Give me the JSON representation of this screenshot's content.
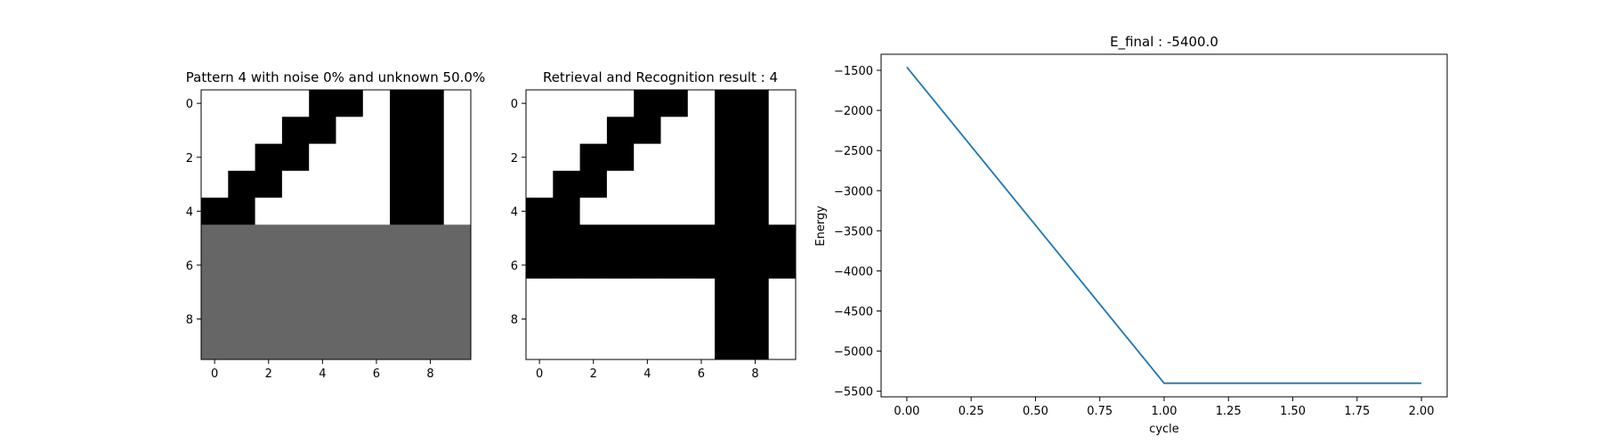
{
  "chart_data": [
    {
      "type": "heatmap",
      "title": "Pattern 4 with noise 0% and unknown 50.0%",
      "xlabel": "",
      "ylabel": "",
      "x_ticks": [
        0,
        2,
        4,
        6,
        8
      ],
      "y_ticks": [
        0,
        2,
        4,
        6,
        8
      ],
      "colormap": "gray (1 = black, 0 = unknown gray, -1 = white)",
      "colors": {
        "1": "#000000",
        "0": "#666666",
        "-1": "#ffffff"
      },
      "grid": [
        [
          -1,
          -1,
          -1,
          -1,
          1,
          1,
          -1,
          1,
          1,
          -1
        ],
        [
          -1,
          -1,
          -1,
          1,
          1,
          -1,
          -1,
          1,
          1,
          -1
        ],
        [
          -1,
          -1,
          1,
          1,
          -1,
          -1,
          -1,
          1,
          1,
          -1
        ],
        [
          -1,
          1,
          1,
          -1,
          -1,
          -1,
          -1,
          1,
          1,
          -1
        ],
        [
          1,
          1,
          -1,
          -1,
          -1,
          -1,
          -1,
          1,
          1,
          -1
        ],
        [
          0,
          0,
          0,
          0,
          0,
          0,
          0,
          0,
          0,
          0
        ],
        [
          0,
          0,
          0,
          0,
          0,
          0,
          0,
          0,
          0,
          0
        ],
        [
          0,
          0,
          0,
          0,
          0,
          0,
          0,
          0,
          0,
          0
        ],
        [
          0,
          0,
          0,
          0,
          0,
          0,
          0,
          0,
          0,
          0
        ],
        [
          0,
          0,
          0,
          0,
          0,
          0,
          0,
          0,
          0,
          0
        ]
      ]
    },
    {
      "type": "heatmap",
      "title": "Retrieval and Recognition result : 4",
      "xlabel": "",
      "ylabel": "",
      "x_ticks": [
        0,
        2,
        4,
        6,
        8
      ],
      "y_ticks": [
        0,
        2,
        4,
        6,
        8
      ],
      "colormap": "gray (1 = black, -1 = white)",
      "colors": {
        "1": "#000000",
        "0": "#666666",
        "-1": "#ffffff"
      },
      "grid": [
        [
          -1,
          -1,
          -1,
          -1,
          1,
          1,
          -1,
          1,
          1,
          -1
        ],
        [
          -1,
          -1,
          -1,
          1,
          1,
          -1,
          -1,
          1,
          1,
          -1
        ],
        [
          -1,
          -1,
          1,
          1,
          -1,
          -1,
          -1,
          1,
          1,
          -1
        ],
        [
          -1,
          1,
          1,
          -1,
          -1,
          -1,
          -1,
          1,
          1,
          -1
        ],
        [
          1,
          1,
          -1,
          -1,
          -1,
          -1,
          -1,
          1,
          1,
          -1
        ],
        [
          1,
          1,
          1,
          1,
          1,
          1,
          1,
          1,
          1,
          1
        ],
        [
          1,
          1,
          1,
          1,
          1,
          1,
          1,
          1,
          1,
          1
        ],
        [
          -1,
          -1,
          -1,
          -1,
          -1,
          -1,
          -1,
          1,
          1,
          -1
        ],
        [
          -1,
          -1,
          -1,
          -1,
          -1,
          -1,
          -1,
          1,
          1,
          -1
        ],
        [
          -1,
          -1,
          -1,
          -1,
          -1,
          -1,
          -1,
          1,
          1,
          -1
        ]
      ]
    },
    {
      "type": "line",
      "title": "E_final : -5400.0",
      "xlabel": "cycle",
      "ylabel": "Energy",
      "xlim": [
        -0.1,
        2.1
      ],
      "ylim": [
        -5570,
        -1300
      ],
      "x_ticks": [
        0.0,
        0.25,
        0.5,
        0.75,
        1.0,
        1.25,
        1.5,
        1.75,
        2.0
      ],
      "x_tick_labels": [
        "0.00",
        "0.25",
        "0.50",
        "0.75",
        "1.00",
        "1.25",
        "1.50",
        "1.75",
        "2.00"
      ],
      "y_ticks": [
        -1500,
        -2000,
        -2500,
        -3000,
        -3500,
        -4000,
        -4500,
        -5000,
        -5500
      ],
      "y_tick_labels": [
        "−1500",
        "−2000",
        "−2500",
        "−3000",
        "−3500",
        "−4000",
        "−4500",
        "−5000",
        "−5500"
      ],
      "grid_lines": false,
      "series": [
        {
          "color": "#1f77b4",
          "x": [
            0,
            1,
            2
          ],
          "y": [
            -1460,
            -5400,
            -5400
          ]
        }
      ]
    }
  ]
}
